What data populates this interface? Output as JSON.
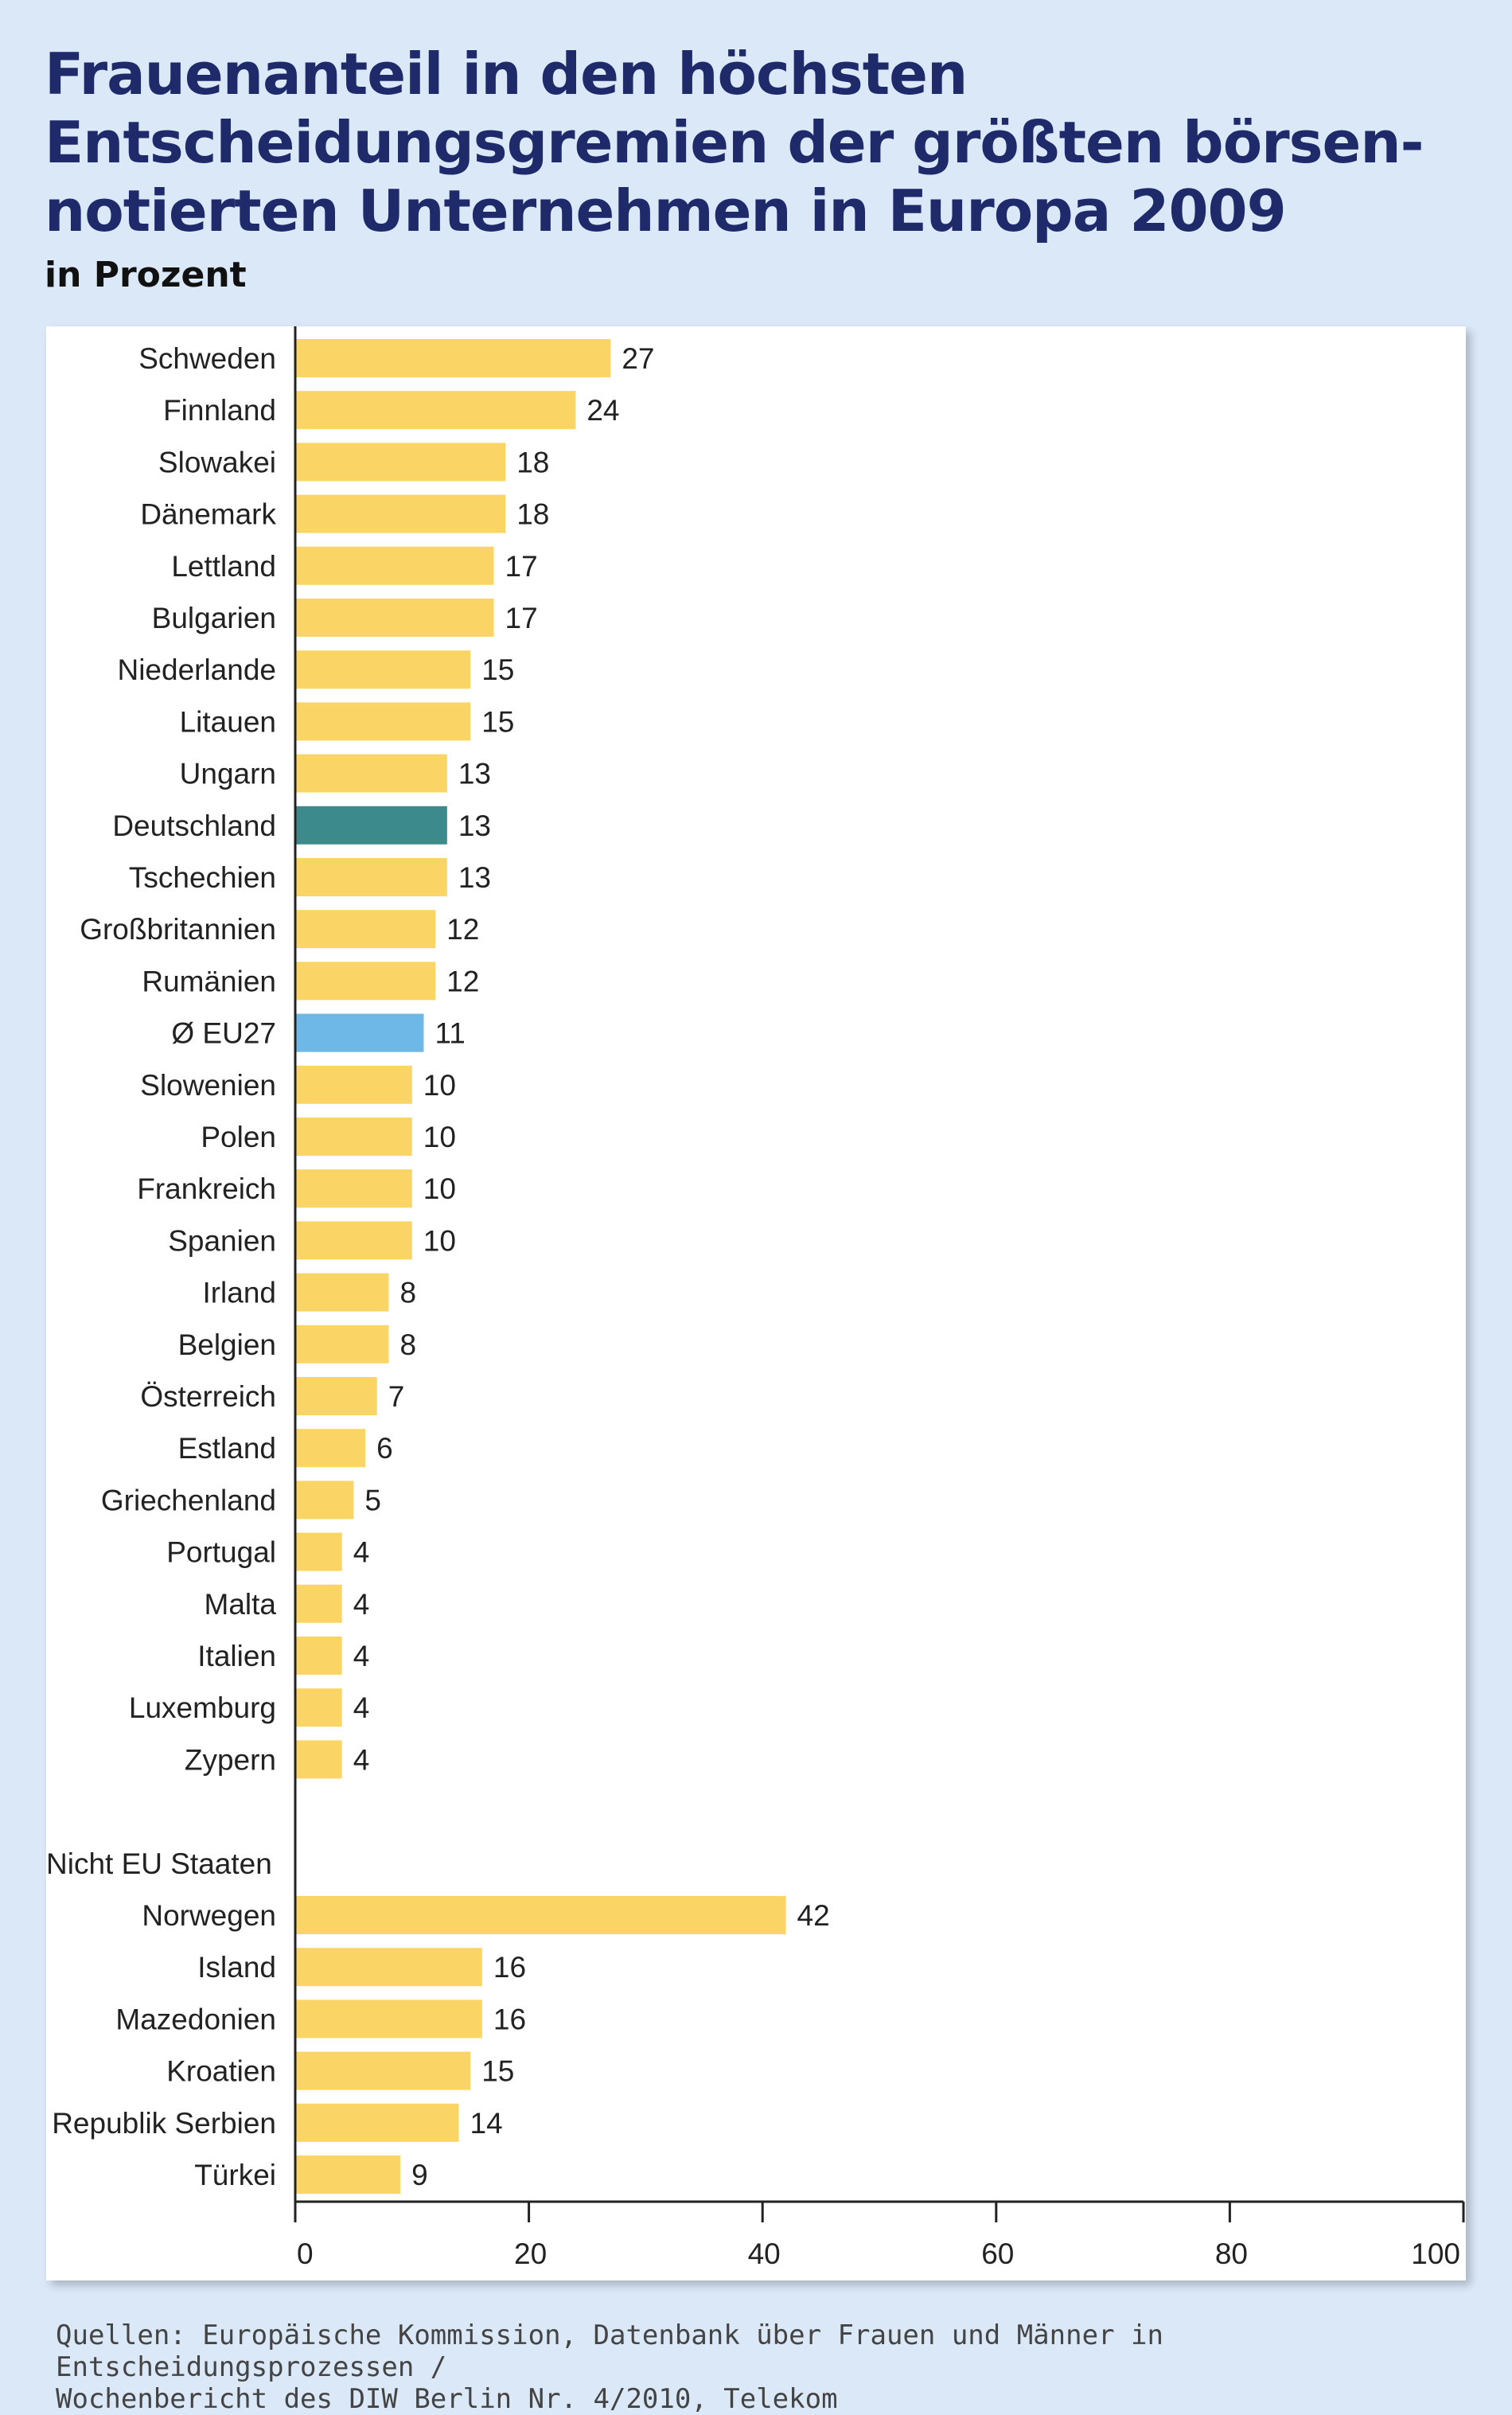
{
  "title_lines": [
    "Frauenanteil in den höchsten",
    "Entscheidungsgremien der größten börsen-",
    "notierten Unternehmen in Europa 2009"
  ],
  "subtitle": "in Prozent",
  "source_lines": [
    "Quellen: Europäische Kommission, Datenbank über Frauen und Männer in Entscheidungsprozessen /",
    "Wochenbericht des DIW Berlin Nr. 4/2010, Telekom"
  ],
  "colors": {
    "bar": "#fad565",
    "highlight": "#3d8a8c",
    "average": "#6db8e6",
    "background": "#dbe8f8",
    "title": "#1f2a6b"
  },
  "chart_data": {
    "type": "bar",
    "orientation": "horizontal",
    "title": "Frauenanteil in den höchsten Entscheidungsgremien der größten börsennotierten Unternehmen in Europa 2009",
    "subtitle": "in Prozent",
    "xlim": [
      0,
      100
    ],
    "xticks": [
      0,
      20,
      40,
      60,
      80,
      100
    ],
    "grid": false,
    "groups": [
      {
        "heading": "",
        "bars": [
          {
            "label": "Schweden",
            "value": 27
          },
          {
            "label": "Finnland",
            "value": 24
          },
          {
            "label": "Slowakei",
            "value": 18
          },
          {
            "label": "Dänemark",
            "value": 18
          },
          {
            "label": "Lettland",
            "value": 17
          },
          {
            "label": "Bulgarien",
            "value": 17
          },
          {
            "label": "Niederlande",
            "value": 15
          },
          {
            "label": "Litauen",
            "value": 15
          },
          {
            "label": "Ungarn",
            "value": 13
          },
          {
            "label": "Deutschland",
            "value": 13,
            "highlight": "highlight"
          },
          {
            "label": "Tschechien",
            "value": 13
          },
          {
            "label": "Großbritannien",
            "value": 12
          },
          {
            "label": "Rumänien",
            "value": 12
          },
          {
            "label": "Ø EU27",
            "value": 11,
            "highlight": "average"
          },
          {
            "label": "Slowenien",
            "value": 10
          },
          {
            "label": "Polen",
            "value": 10
          },
          {
            "label": "Frankreich",
            "value": 10
          },
          {
            "label": "Spanien",
            "value": 10
          },
          {
            "label": "Irland",
            "value": 8
          },
          {
            "label": "Belgien",
            "value": 8
          },
          {
            "label": "Österreich",
            "value": 7
          },
          {
            "label": "Estland",
            "value": 6
          },
          {
            "label": "Griechenland",
            "value": 5
          },
          {
            "label": "Portugal",
            "value": 4
          },
          {
            "label": "Malta",
            "value": 4
          },
          {
            "label": "Italien",
            "value": 4
          },
          {
            "label": "Luxemburg",
            "value": 4
          },
          {
            "label": "Zypern",
            "value": 4
          }
        ]
      },
      {
        "heading": "Nicht EU Staaten",
        "bars": [
          {
            "label": "Norwegen",
            "value": 42
          },
          {
            "label": "Island",
            "value": 16
          },
          {
            "label": "Mazedonien",
            "value": 16
          },
          {
            "label": "Kroatien",
            "value": 15
          },
          {
            "label": "Republik Serbien",
            "value": 14
          },
          {
            "label": "Türkei",
            "value": 9
          }
        ]
      }
    ]
  }
}
